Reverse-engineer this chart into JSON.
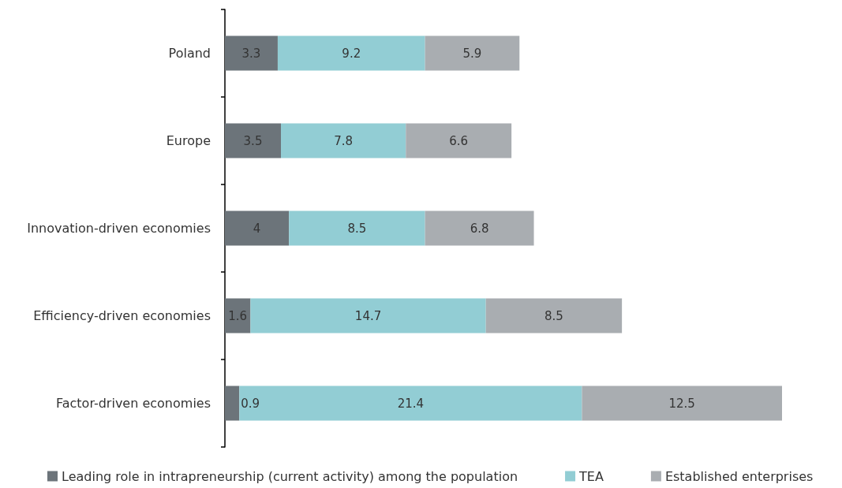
{
  "chart_data": {
    "type": "bar",
    "orientation": "horizontal",
    "stacked": true,
    "data_labels": true,
    "legend": "bottom",
    "categories": [
      "Poland",
      "Europe",
      "Innovation-driven economies",
      "Efficiency-driven economies",
      "Factor-driven economies"
    ],
    "series": [
      {
        "name": "Leading role in intrapreneurship (current activity) among the population",
        "color": "#6c747a",
        "values": [
          3.3,
          3.5,
          4,
          1.6,
          0.9
        ]
      },
      {
        "name": "TEA",
        "color": "#92cdd4",
        "values": [
          9.2,
          7.8,
          8.5,
          14.7,
          21.4
        ]
      },
      {
        "name": "Established enterprises",
        "color": "#a9adb1",
        "values": [
          5.9,
          6.6,
          6.8,
          8.5,
          12.5
        ]
      }
    ]
  }
}
